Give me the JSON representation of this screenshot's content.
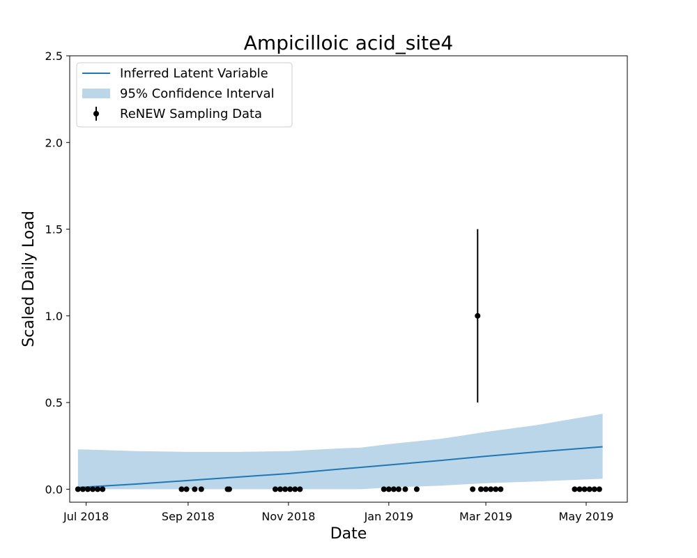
{
  "chart_data": {
    "type": "line",
    "title": "Ampicilloic acid_site4",
    "xlabel": "Date",
    "ylabel": "Scaled Daily Load",
    "xlim": [
      "2018-06-21",
      "2019-05-26"
    ],
    "ylim": [
      -0.075,
      2.5
    ],
    "x_ticks": [
      {
        "date": "2018-07-01",
        "label": "Jul 2018"
      },
      {
        "date": "2018-09-01",
        "label": "Sep 2018"
      },
      {
        "date": "2018-11-01",
        "label": "Nov 2018"
      },
      {
        "date": "2019-01-01",
        "label": "Jan 2019"
      },
      {
        "date": "2019-03-01",
        "label": "Mar 2019"
      },
      {
        "date": "2019-05-01",
        "label": "May 2019"
      }
    ],
    "y_ticks": [
      {
        "value": 0.0,
        "label": "0.0"
      },
      {
        "value": 0.5,
        "label": "0.5"
      },
      {
        "value": 1.0,
        "label": "1.0"
      },
      {
        "value": 1.5,
        "label": "1.5"
      },
      {
        "value": 2.0,
        "label": "2.0"
      },
      {
        "value": 2.5,
        "label": "2.5"
      }
    ],
    "legend_position": "top-left",
    "grid": false,
    "colors": {
      "line": "#1f77b4",
      "band": "#1f77b4",
      "data": "#000000"
    },
    "series": [
      {
        "name": "Inferred Latent Variable",
        "type": "line",
        "x": [
          "2018-06-26",
          "2018-08-01",
          "2018-09-01",
          "2018-10-01",
          "2018-11-01",
          "2018-12-01",
          "2019-01-01",
          "2019-02-01",
          "2019-03-01",
          "2019-04-01",
          "2019-05-11"
        ],
        "y": [
          0.01,
          0.03,
          0.05,
          0.07,
          0.09,
          0.115,
          0.14,
          0.165,
          0.19,
          0.215,
          0.245
        ]
      },
      {
        "name": "95% Confidence Interval",
        "type": "band",
        "x": [
          "2018-06-26",
          "2018-08-01",
          "2018-09-01",
          "2018-10-01",
          "2018-11-01",
          "2018-12-01",
          "2018-12-15",
          "2019-01-01",
          "2019-02-01",
          "2019-03-01",
          "2019-04-01",
          "2019-05-11"
        ],
        "lower": [
          0.0,
          0.0,
          0.0,
          0.0,
          0.0,
          0.0,
          0.0,
          0.01,
          0.02,
          0.035,
          0.045,
          0.06
        ],
        "upper": [
          0.23,
          0.22,
          0.215,
          0.215,
          0.22,
          0.235,
          0.24,
          0.26,
          0.29,
          0.33,
          0.37,
          0.435
        ]
      },
      {
        "name": "ReNEW Sampling Data",
        "type": "errorbar",
        "points": [
          {
            "x": "2018-06-26",
            "y": 0.0
          },
          {
            "x": "2018-06-29",
            "y": 0.0
          },
          {
            "x": "2018-07-02",
            "y": 0.0
          },
          {
            "x": "2018-07-05",
            "y": 0.0
          },
          {
            "x": "2018-07-08",
            "y": 0.0
          },
          {
            "x": "2018-07-11",
            "y": 0.0
          },
          {
            "x": "2018-08-28",
            "y": 0.0
          },
          {
            "x": "2018-08-31",
            "y": 0.0
          },
          {
            "x": "2018-09-05",
            "y": 0.0
          },
          {
            "x": "2018-09-09",
            "y": 0.0
          },
          {
            "x": "2018-09-25",
            "y": 0.0
          },
          {
            "x": "2018-09-26",
            "y": 0.0
          },
          {
            "x": "2018-10-24",
            "y": 0.0
          },
          {
            "x": "2018-10-27",
            "y": 0.0
          },
          {
            "x": "2018-10-30",
            "y": 0.0
          },
          {
            "x": "2018-11-02",
            "y": 0.0
          },
          {
            "x": "2018-11-05",
            "y": 0.0
          },
          {
            "x": "2018-11-08",
            "y": 0.0
          },
          {
            "x": "2018-12-29",
            "y": 0.0
          },
          {
            "x": "2019-01-01",
            "y": 0.0
          },
          {
            "x": "2019-01-04",
            "y": 0.0
          },
          {
            "x": "2019-01-07",
            "y": 0.0
          },
          {
            "x": "2019-01-11",
            "y": 0.0
          },
          {
            "x": "2019-01-18",
            "y": 0.0
          },
          {
            "x": "2019-02-21",
            "y": 0.0
          },
          {
            "x": "2019-02-24",
            "y": 1.0,
            "err_low": 0.5,
            "err_high": 1.5
          },
          {
            "x": "2019-02-26",
            "y": 0.0
          },
          {
            "x": "2019-03-01",
            "y": 0.0
          },
          {
            "x": "2019-03-04",
            "y": 0.0
          },
          {
            "x": "2019-03-07",
            "y": 0.0
          },
          {
            "x": "2019-03-10",
            "y": 0.0
          },
          {
            "x": "2019-04-24",
            "y": 0.0
          },
          {
            "x": "2019-04-27",
            "y": 0.0
          },
          {
            "x": "2019-04-30",
            "y": 0.0
          },
          {
            "x": "2019-05-03",
            "y": 0.0
          },
          {
            "x": "2019-05-06",
            "y": 0.0
          },
          {
            "x": "2019-05-09",
            "y": 0.0
          }
        ]
      }
    ]
  }
}
